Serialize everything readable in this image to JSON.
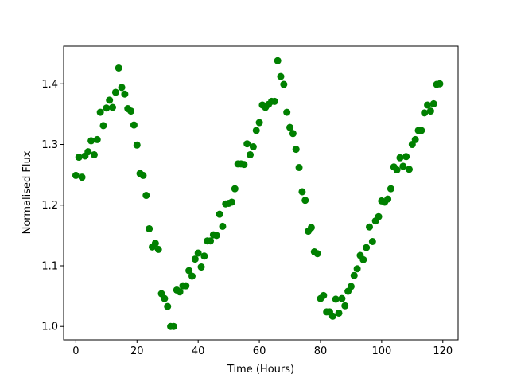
{
  "chart_data": {
    "type": "scatter",
    "title": "",
    "xlabel": "Time (Hours)",
    "ylabel": "Normalised Flux",
    "xlim": [
      -4,
      125
    ],
    "ylim": [
      0.978,
      1.462
    ],
    "xticks": [
      0,
      20,
      40,
      60,
      80,
      100,
      120
    ],
    "yticks": [
      1.0,
      1.1,
      1.2,
      1.3,
      1.4
    ],
    "xtick_labels": [
      "0",
      "20",
      "40",
      "60",
      "80",
      "100",
      "120"
    ],
    "ytick_labels": [
      "1.0",
      "1.1",
      "1.2",
      "1.3",
      "1.4"
    ],
    "grid": false,
    "marker_color": "#008000",
    "series": [
      {
        "x": [
          0,
          1,
          2,
          3,
          4,
          5,
          6,
          7,
          8,
          9,
          10,
          11,
          12,
          13,
          14,
          15,
          16,
          17,
          18,
          19,
          20,
          21,
          22,
          23,
          24,
          25,
          26,
          27,
          28,
          29,
          30,
          31,
          32,
          33,
          34,
          35,
          36,
          37,
          38,
          39,
          40,
          41,
          42,
          43,
          44,
          45,
          46,
          47,
          48,
          49,
          50,
          51,
          52,
          53,
          54,
          55,
          56,
          57,
          58,
          59,
          60,
          61,
          62,
          63,
          64,
          65,
          66,
          67,
          68,
          69,
          70,
          71,
          72,
          73,
          74,
          75,
          76,
          77,
          78,
          79,
          80,
          81,
          82,
          83,
          84,
          85,
          86,
          87,
          88,
          89,
          90,
          91,
          92,
          93,
          94,
          95,
          96,
          97,
          98,
          99,
          100,
          101,
          102,
          103,
          104,
          105,
          106,
          107,
          108,
          109,
          110,
          111,
          112,
          113,
          114,
          115,
          116,
          117,
          118,
          119
        ],
        "y": [
          1.249,
          1.279,
          1.246,
          1.281,
          1.288,
          1.306,
          1.283,
          1.308,
          1.353,
          1.331,
          1.36,
          1.373,
          1.361,
          1.386,
          1.426,
          1.394,
          1.383,
          1.359,
          1.355,
          1.332,
          1.299,
          1.252,
          1.249,
          1.216,
          1.161,
          1.131,
          1.137,
          1.127,
          1.054,
          1.046,
          1.033,
          1.0,
          1.0,
          1.06,
          1.057,
          1.067,
          1.067,
          1.092,
          1.083,
          1.111,
          1.121,
          1.098,
          1.116,
          1.141,
          1.141,
          1.151,
          1.15,
          1.185,
          1.165,
          1.202,
          1.203,
          1.205,
          1.227,
          1.268,
          1.268,
          1.267,
          1.301,
          1.283,
          1.296,
          1.323,
          1.336,
          1.365,
          1.361,
          1.366,
          1.371,
          1.371,
          1.438,
          1.412,
          1.399,
          1.353,
          1.328,
          1.318,
          1.292,
          1.262,
          1.222,
          1.208,
          1.157,
          1.163,
          1.123,
          1.12,
          1.046,
          1.051,
          1.024,
          1.024,
          1.017,
          1.045,
          1.022,
          1.046,
          1.034,
          1.058,
          1.066,
          1.084,
          1.095,
          1.117,
          1.11,
          1.13,
          1.164,
          1.14,
          1.174,
          1.181,
          1.207,
          1.205,
          1.21,
          1.227,
          1.263,
          1.258,
          1.278,
          1.264,
          1.28,
          1.259,
          1.3,
          1.308,
          1.323,
          1.323,
          1.352,
          1.365,
          1.355,
          1.367,
          1.399,
          1.4
        ]
      }
    ]
  }
}
